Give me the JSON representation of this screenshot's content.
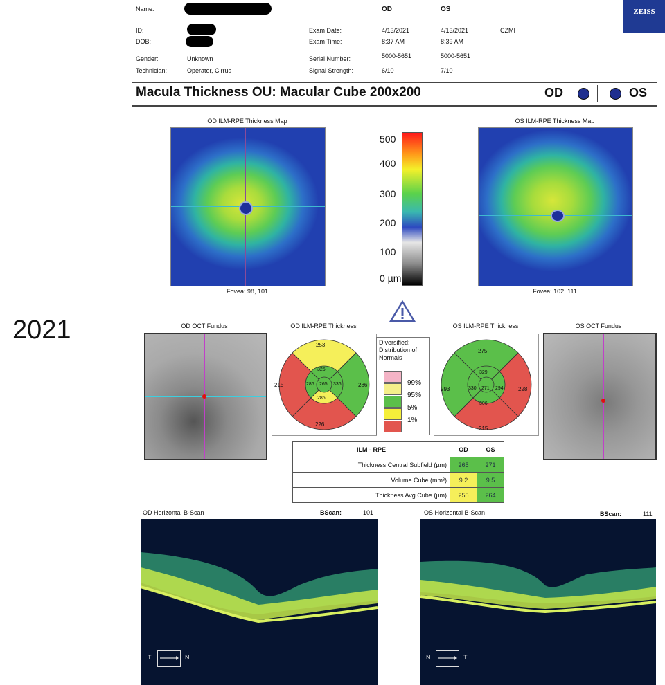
{
  "header": {
    "labels": {
      "name": "Name:",
      "id": "ID:",
      "dob": "DOB:",
      "gender": "Gender:",
      "technician": "Technician:"
    },
    "gender_value": "Unknown",
    "technician_value": "Operator, Cirrus",
    "col_od": "OD",
    "col_os": "OS",
    "exam_date_label": "Exam Date:",
    "exam_time_label": "Exam Time:",
    "serial_label": "Serial Number:",
    "signal_label": "Signal Strength:",
    "od": {
      "date": "4/13/2021",
      "time": "8:37 AM",
      "serial": "5000-5651",
      "signal": "6/10"
    },
    "os": {
      "date": "4/13/2021",
      "time": "8:39 AM",
      "serial": "5000-5651",
      "signal": "7/10"
    },
    "site": "CZMI",
    "logo": "ZEISS"
  },
  "title": {
    "text": "Macula Thickness OU: Macular Cube 200x200",
    "od": "OD",
    "os": "OS"
  },
  "year_label": "2021",
  "maps": {
    "od_title": "OD ILM-RPE Thickness Map",
    "os_title": "OS ILM-RPE Thickness Map",
    "od_fovea": "Fovea: 98, 101",
    "os_fovea": "Fovea: 102, 111"
  },
  "scale": {
    "ticks": [
      "500",
      "400",
      "300",
      "200",
      "100",
      "0 µm"
    ]
  },
  "fundus": {
    "od_title": "OD OCT Fundus",
    "os_title": "OS OCT Fundus"
  },
  "etdrs": {
    "od_title": "OD ILM-RPE Thickness",
    "os_title": "OS ILM-RPE Thickness",
    "od": {
      "outer_top": "253",
      "outer_left": "215",
      "outer_right": "286",
      "outer_bottom": "226",
      "inner_top": "325",
      "inner_left": "286",
      "inner_right": "336",
      "inner_bottom": "286",
      "center": "265"
    },
    "os": {
      "outer_top": "275",
      "outer_left": "293",
      "outer_right": "228",
      "outer_bottom": "215",
      "inner_top": "329",
      "inner_left": "330",
      "inner_right": "294",
      "inner_bottom": "306",
      "center": "271"
    }
  },
  "legend": {
    "title": "Diversified: Distribution of Normals",
    "levels": [
      "99%",
      "95%",
      "5%",
      "1%"
    ]
  },
  "table": {
    "header": [
      "ILM - RPE",
      "OD",
      "OS"
    ],
    "rows": [
      {
        "label": "Thickness Central Subfield (µm)",
        "od": "265",
        "os": "271"
      },
      {
        "label": "Volume Cube (mm³)",
        "od": "9.2",
        "os": "9.5"
      },
      {
        "label": "Thickness Avg Cube (µm)",
        "od": "255",
        "os": "264"
      }
    ]
  },
  "bscans": {
    "od_title": "OD Horizontal B-Scan",
    "os_title": "OS Horizontal B-Scan",
    "bscan_label": "BScan:",
    "od_number": "101",
    "os_number": "111",
    "od_dir_left": "T",
    "od_dir_right": "N",
    "os_dir_left": "N",
    "os_dir_right": "T"
  },
  "colors": {
    "normal_green": "#5bbf4a",
    "borderline_yellow": "#f5ef5a",
    "abnormal_red": "#e2554e",
    "eye_blue": "#1f2f8f"
  }
}
